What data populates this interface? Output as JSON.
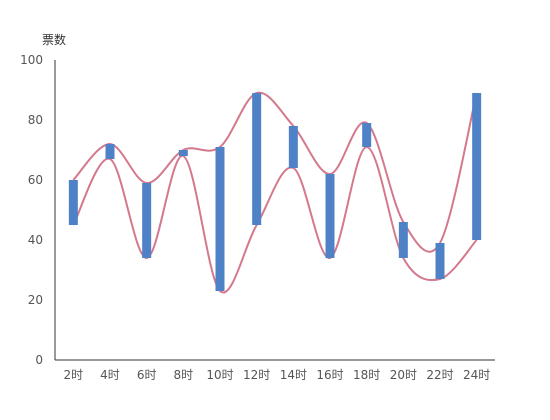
{
  "chart_data": {
    "type": "bar",
    "subtype": "floating-bar-with-smooth-lines",
    "title": "",
    "ylabel": "票数",
    "xlabel": "",
    "ylim": [
      0,
      100
    ],
    "yticks": [
      0,
      20,
      40,
      60,
      80,
      100
    ],
    "categories": [
      "2时",
      "4时",
      "6时",
      "8时",
      "10时",
      "12时",
      "14时",
      "16时",
      "18时",
      "20时",
      "22时",
      "24时"
    ],
    "series": [
      {
        "values": [
          60,
          72,
          59,
          70,
          71,
          89,
          78,
          62,
          79,
          46,
          39,
          89
        ]
      },
      {
        "values": [
          45,
          67,
          34,
          68,
          23,
          45,
          64,
          34,
          71,
          34,
          27,
          40
        ]
      }
    ],
    "grid": false,
    "legend": "none",
    "colors": {
      "bar": "#4f81c7",
      "line": "#d4788c",
      "axis": "#333333",
      "tick_text": "#555555"
    }
  }
}
